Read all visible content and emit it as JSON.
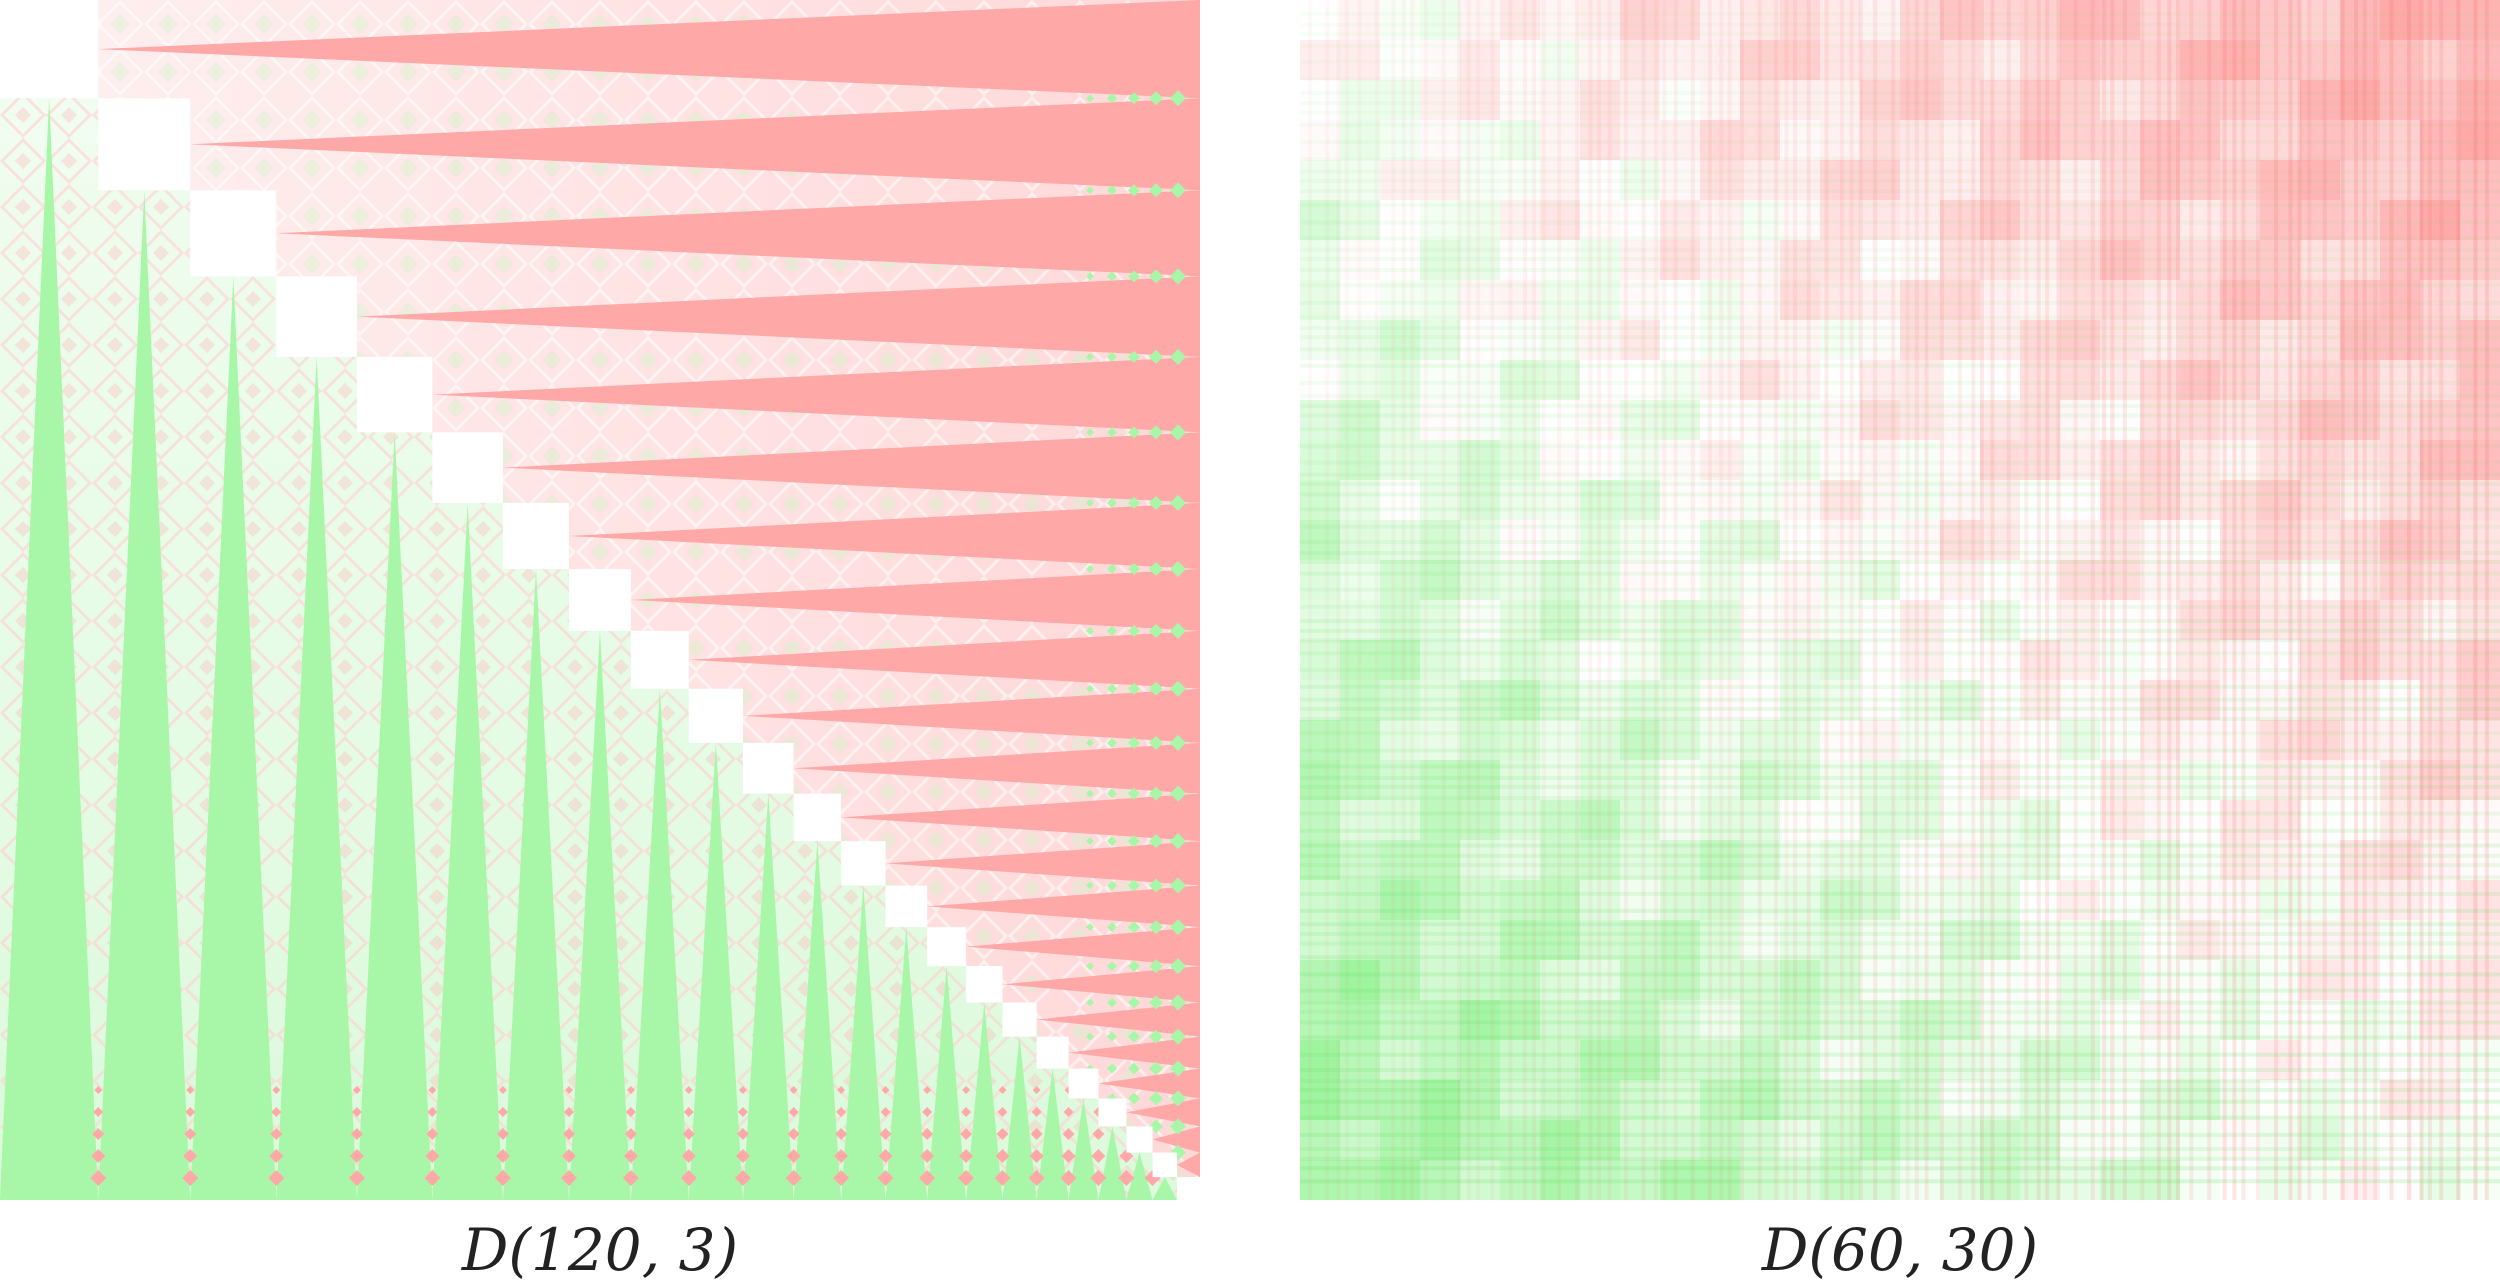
{
  "figures": [
    {
      "id": "left",
      "caption": "D(120, 3)"
    },
    {
      "id": "right",
      "caption": "D(60, 30)"
    }
  ],
  "colors": {
    "background": "#ffffff",
    "red_strong": "#ffa8a8",
    "red_light": "#ffe1e1",
    "green_strong": "#a8f7a8",
    "green_light": "#e2fbe2",
    "diagonal_block": "#ffffff",
    "grid_red": "#f06060",
    "grid_green": "#60e060"
  }
}
